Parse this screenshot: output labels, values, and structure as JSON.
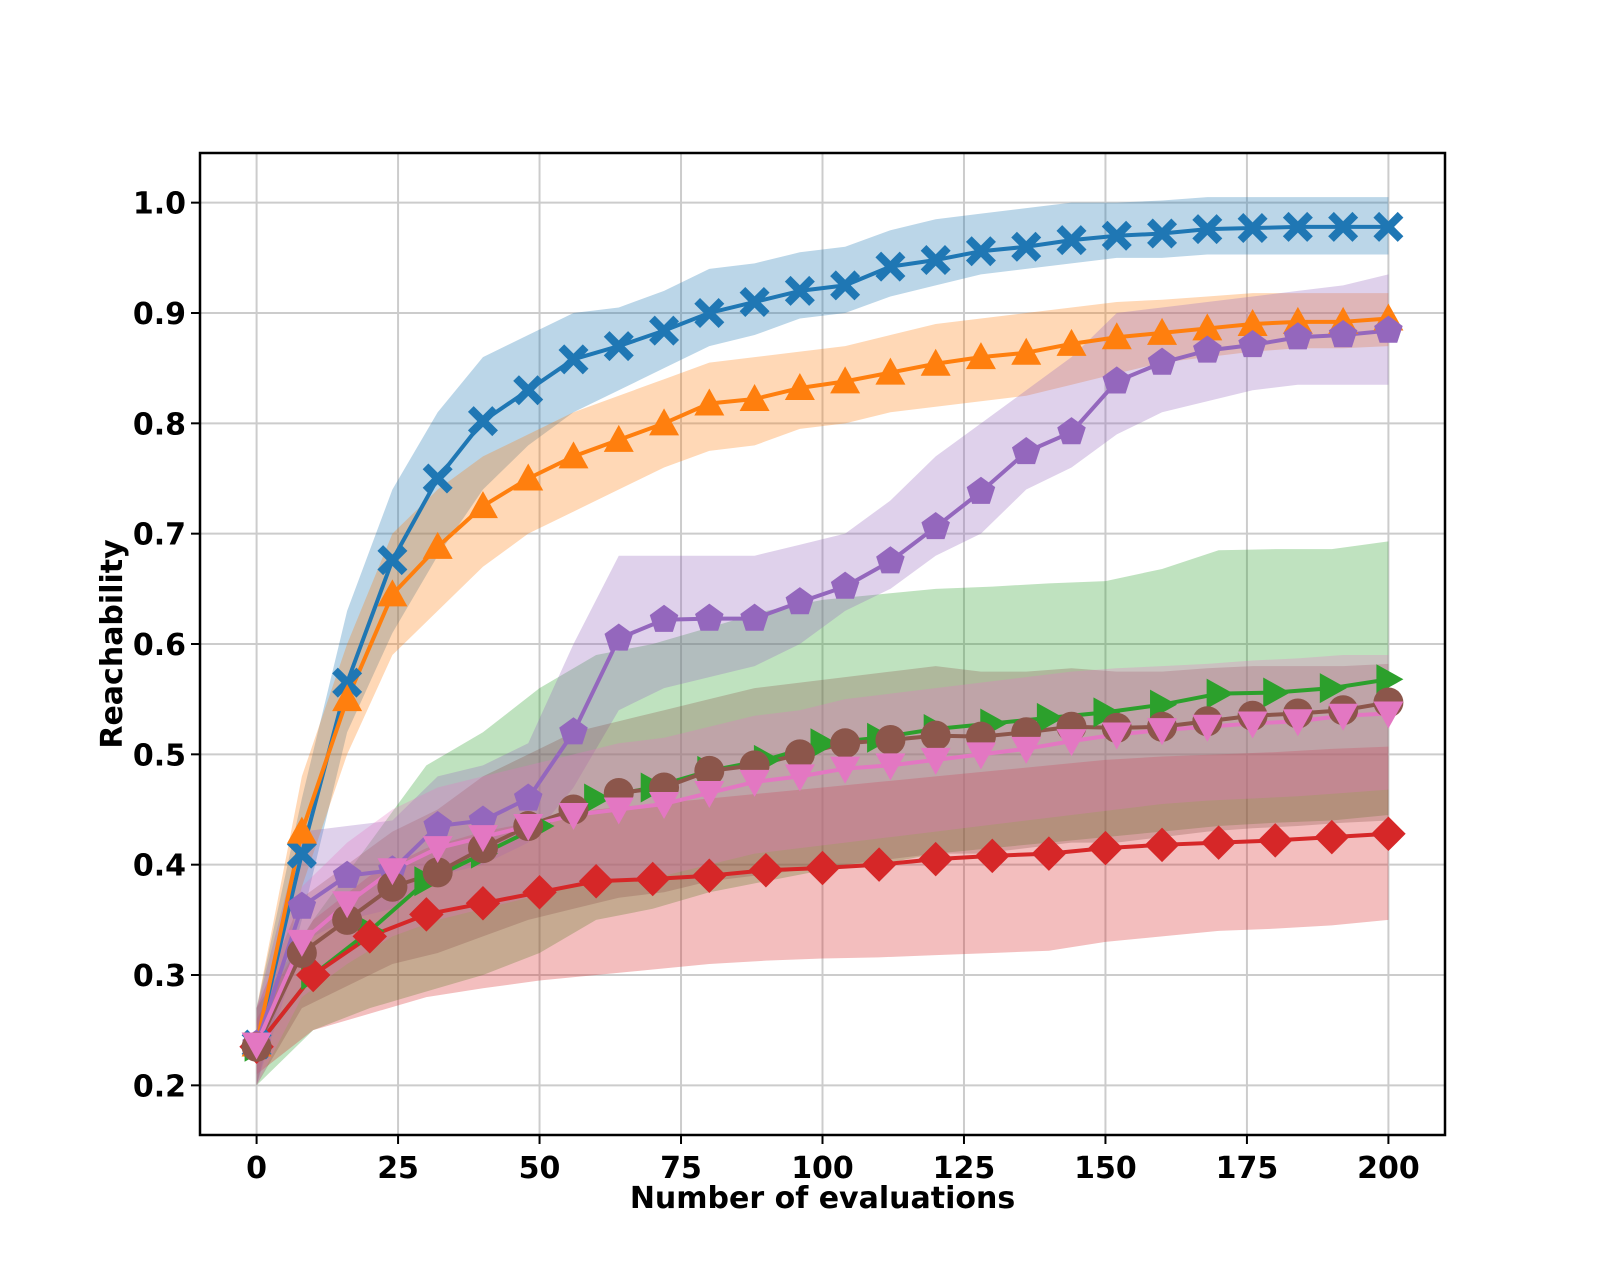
{
  "chart_data": {
    "type": "line",
    "title": "",
    "xlabel": "Number of evaluations",
    "ylabel": "Reachability",
    "xlim": [
      -10,
      210
    ],
    "ylim": [
      0.155,
      1.045
    ],
    "xticks": [
      0,
      25,
      50,
      75,
      100,
      125,
      150,
      175,
      200
    ],
    "yticks": [
      0.2,
      0.3,
      0.4,
      0.5,
      0.6,
      0.7,
      0.8,
      0.9,
      1.0
    ],
    "xtick_labels": [
      "0",
      "25",
      "50",
      "75",
      "100",
      "125",
      "150",
      "175",
      "200"
    ],
    "ytick_labels": [
      "0.2",
      "0.3",
      "0.4",
      "0.5",
      "0.6",
      "0.7",
      "0.8",
      "0.9",
      "1.0"
    ],
    "grid": true,
    "legend": "none",
    "series": [
      {
        "color": "#1f77b4",
        "marker": "X",
        "x": [
          0,
          8,
          16,
          24,
          32,
          40,
          48,
          56,
          64,
          72,
          80,
          88,
          96,
          104,
          112,
          120,
          128,
          136,
          144,
          152,
          160,
          168,
          176,
          184,
          192,
          200
        ],
        "y": [
          0.237,
          0.41,
          0.565,
          0.676,
          0.75,
          0.802,
          0.83,
          0.858,
          0.87,
          0.884,
          0.9,
          0.91,
          0.92,
          0.925,
          0.942,
          0.948,
          0.956,
          0.96,
          0.966,
          0.97,
          0.972,
          0.976,
          0.977,
          0.978,
          0.978,
          0.978
        ],
        "lower": [
          0.2,
          0.35,
          0.52,
          0.61,
          0.68,
          0.74,
          0.78,
          0.81,
          0.83,
          0.85,
          0.87,
          0.88,
          0.895,
          0.9,
          0.915,
          0.925,
          0.935,
          0.94,
          0.945,
          0.95,
          0.95,
          0.953,
          0.953,
          0.953,
          0.953,
          0.953
        ],
        "upper": [
          0.27,
          0.46,
          0.63,
          0.74,
          0.81,
          0.86,
          0.88,
          0.9,
          0.905,
          0.92,
          0.94,
          0.945,
          0.955,
          0.96,
          0.975,
          0.985,
          0.99,
          0.995,
          1.0,
          1.0,
          1.002,
          1.005,
          1.005,
          1.005,
          1.005,
          1.005
        ]
      },
      {
        "color": "#ff7f0e",
        "marker": "^",
        "x": [
          0,
          8,
          16,
          24,
          32,
          40,
          48,
          56,
          64,
          72,
          80,
          88,
          96,
          104,
          112,
          120,
          128,
          136,
          144,
          152,
          160,
          168,
          176,
          184,
          192,
          200
        ],
        "y": [
          0.237,
          0.43,
          0.55,
          0.645,
          0.688,
          0.725,
          0.75,
          0.77,
          0.785,
          0.8,
          0.818,
          0.822,
          0.832,
          0.838,
          0.846,
          0.854,
          0.86,
          0.864,
          0.872,
          0.878,
          0.882,
          0.886,
          0.89,
          0.892,
          0.892,
          0.895
        ],
        "lower": [
          0.2,
          0.38,
          0.5,
          0.59,
          0.63,
          0.67,
          0.7,
          0.72,
          0.74,
          0.76,
          0.775,
          0.78,
          0.795,
          0.8,
          0.81,
          0.815,
          0.82,
          0.825,
          0.835,
          0.845,
          0.855,
          0.86,
          0.865,
          0.868,
          0.868,
          0.87
        ],
        "upper": [
          0.27,
          0.48,
          0.6,
          0.7,
          0.74,
          0.77,
          0.79,
          0.81,
          0.825,
          0.84,
          0.855,
          0.86,
          0.865,
          0.87,
          0.88,
          0.89,
          0.895,
          0.9,
          0.905,
          0.91,
          0.912,
          0.915,
          0.918,
          0.918,
          0.918,
          0.918
        ]
      },
      {
        "color": "#2ca02c",
        "marker": ">",
        "x": [
          0,
          10,
          20,
          30,
          40,
          50,
          60,
          70,
          80,
          90,
          100,
          110,
          120,
          130,
          140,
          150,
          160,
          170,
          180,
          190,
          200
        ],
        "y": [
          0.235,
          0.3,
          0.34,
          0.385,
          0.41,
          0.435,
          0.46,
          0.47,
          0.485,
          0.495,
          0.51,
          0.515,
          0.523,
          0.528,
          0.533,
          0.538,
          0.545,
          0.555,
          0.556,
          0.56,
          0.568
        ],
        "lower": [
          0.2,
          0.25,
          0.27,
          0.285,
          0.3,
          0.32,
          0.35,
          0.36,
          0.375,
          0.385,
          0.395,
          0.4,
          0.41,
          0.415,
          0.42,
          0.425,
          0.43,
          0.435,
          0.438,
          0.44,
          0.445
        ],
        "upper": [
          0.27,
          0.35,
          0.42,
          0.49,
          0.52,
          0.56,
          0.59,
          0.6,
          0.615,
          0.63,
          0.64,
          0.645,
          0.65,
          0.652,
          0.655,
          0.657,
          0.668,
          0.685,
          0.686,
          0.686,
          0.693
        ]
      },
      {
        "color": "#d62728",
        "marker": "D",
        "x": [
          0,
          10,
          20,
          30,
          40,
          50,
          60,
          70,
          80,
          90,
          100,
          110,
          120,
          130,
          140,
          150,
          160,
          170,
          180,
          190,
          200
        ],
        "y": [
          0.235,
          0.3,
          0.335,
          0.355,
          0.365,
          0.375,
          0.385,
          0.387,
          0.39,
          0.395,
          0.397,
          0.4,
          0.405,
          0.408,
          0.41,
          0.415,
          0.418,
          0.42,
          0.422,
          0.425,
          0.428
        ],
        "lower": [
          0.21,
          0.25,
          0.265,
          0.28,
          0.288,
          0.295,
          0.3,
          0.305,
          0.31,
          0.313,
          0.315,
          0.316,
          0.318,
          0.32,
          0.322,
          0.33,
          0.335,
          0.34,
          0.342,
          0.345,
          0.35
        ],
        "upper": [
          0.26,
          0.35,
          0.39,
          0.415,
          0.43,
          0.44,
          0.45,
          0.455,
          0.46,
          0.465,
          0.47,
          0.475,
          0.48,
          0.485,
          0.49,
          0.495,
          0.498,
          0.5,
          0.502,
          0.505,
          0.507
        ]
      },
      {
        "color": "#9467bd",
        "marker": "p",
        "x": [
          0,
          8,
          16,
          24,
          32,
          40,
          48,
          56,
          64,
          72,
          80,
          88,
          96,
          104,
          112,
          120,
          128,
          136,
          144,
          152,
          160,
          168,
          176,
          184,
          192,
          200
        ],
        "y": [
          0.237,
          0.362,
          0.39,
          0.395,
          0.435,
          0.44,
          0.46,
          0.52,
          0.605,
          0.622,
          0.623,
          0.623,
          0.638,
          0.652,
          0.675,
          0.706,
          0.738,
          0.774,
          0.792,
          0.838,
          0.855,
          0.866,
          0.871,
          0.878,
          0.88,
          0.884
        ],
        "lower": [
          0.2,
          0.33,
          0.35,
          0.36,
          0.39,
          0.4,
          0.42,
          0.47,
          0.54,
          0.56,
          0.57,
          0.58,
          0.6,
          0.63,
          0.65,
          0.68,
          0.7,
          0.74,
          0.76,
          0.79,
          0.81,
          0.82,
          0.83,
          0.835,
          0.835,
          0.835
        ],
        "upper": [
          0.27,
          0.43,
          0.435,
          0.44,
          0.48,
          0.49,
          0.51,
          0.6,
          0.68,
          0.68,
          0.68,
          0.68,
          0.69,
          0.7,
          0.73,
          0.77,
          0.8,
          0.83,
          0.86,
          0.9,
          0.905,
          0.91,
          0.915,
          0.92,
          0.925,
          0.935
        ]
      },
      {
        "color": "#8c564b",
        "marker": "o",
        "x": [
          0,
          8,
          16,
          24,
          32,
          40,
          48,
          56,
          64,
          72,
          80,
          88,
          96,
          104,
          112,
          120,
          128,
          136,
          144,
          152,
          160,
          168,
          176,
          184,
          192,
          200
        ],
        "y": [
          0.235,
          0.32,
          0.35,
          0.38,
          0.393,
          0.415,
          0.435,
          0.45,
          0.465,
          0.47,
          0.485,
          0.49,
          0.5,
          0.51,
          0.513,
          0.517,
          0.516,
          0.52,
          0.525,
          0.524,
          0.525,
          0.53,
          0.535,
          0.537,
          0.54,
          0.547
        ],
        "lower": [
          0.2,
          0.27,
          0.29,
          0.31,
          0.32,
          0.335,
          0.35,
          0.36,
          0.37,
          0.375,
          0.385,
          0.39,
          0.395,
          0.4,
          0.405,
          0.41,
          0.41,
          0.415,
          0.42,
          0.42,
          0.425,
          0.43,
          0.433,
          0.435,
          0.438,
          0.44
        ],
        "upper": [
          0.27,
          0.37,
          0.4,
          0.43,
          0.45,
          0.48,
          0.5,
          0.52,
          0.53,
          0.54,
          0.55,
          0.56,
          0.565,
          0.57,
          0.575,
          0.58,
          0.575,
          0.575,
          0.578,
          0.575,
          0.575,
          0.578,
          0.58,
          0.58,
          0.58,
          0.582
        ]
      },
      {
        "color": "#e377c2",
        "marker": "v",
        "x": [
          0,
          8,
          16,
          24,
          32,
          40,
          48,
          56,
          64,
          72,
          80,
          88,
          96,
          104,
          112,
          120,
          128,
          136,
          144,
          152,
          160,
          168,
          176,
          184,
          192,
          200
        ],
        "y": [
          0.237,
          0.33,
          0.365,
          0.395,
          0.415,
          0.425,
          0.435,
          0.445,
          0.45,
          0.455,
          0.465,
          0.475,
          0.48,
          0.487,
          0.49,
          0.495,
          0.5,
          0.505,
          0.512,
          0.518,
          0.522,
          0.525,
          0.528,
          0.53,
          0.535,
          0.537
        ],
        "lower": [
          0.2,
          0.28,
          0.31,
          0.335,
          0.35,
          0.36,
          0.37,
          0.38,
          0.385,
          0.39,
          0.4,
          0.41,
          0.415,
          0.42,
          0.425,
          0.43,
          0.435,
          0.44,
          0.445,
          0.45,
          0.455,
          0.458,
          0.46,
          0.462,
          0.465,
          0.468
        ],
        "upper": [
          0.27,
          0.38,
          0.42,
          0.45,
          0.47,
          0.48,
          0.49,
          0.5,
          0.51,
          0.515,
          0.525,
          0.535,
          0.54,
          0.55,
          0.555,
          0.56,
          0.565,
          0.57,
          0.575,
          0.578,
          0.58,
          0.582,
          0.585,
          0.587,
          0.59,
          0.59
        ]
      }
    ]
  }
}
